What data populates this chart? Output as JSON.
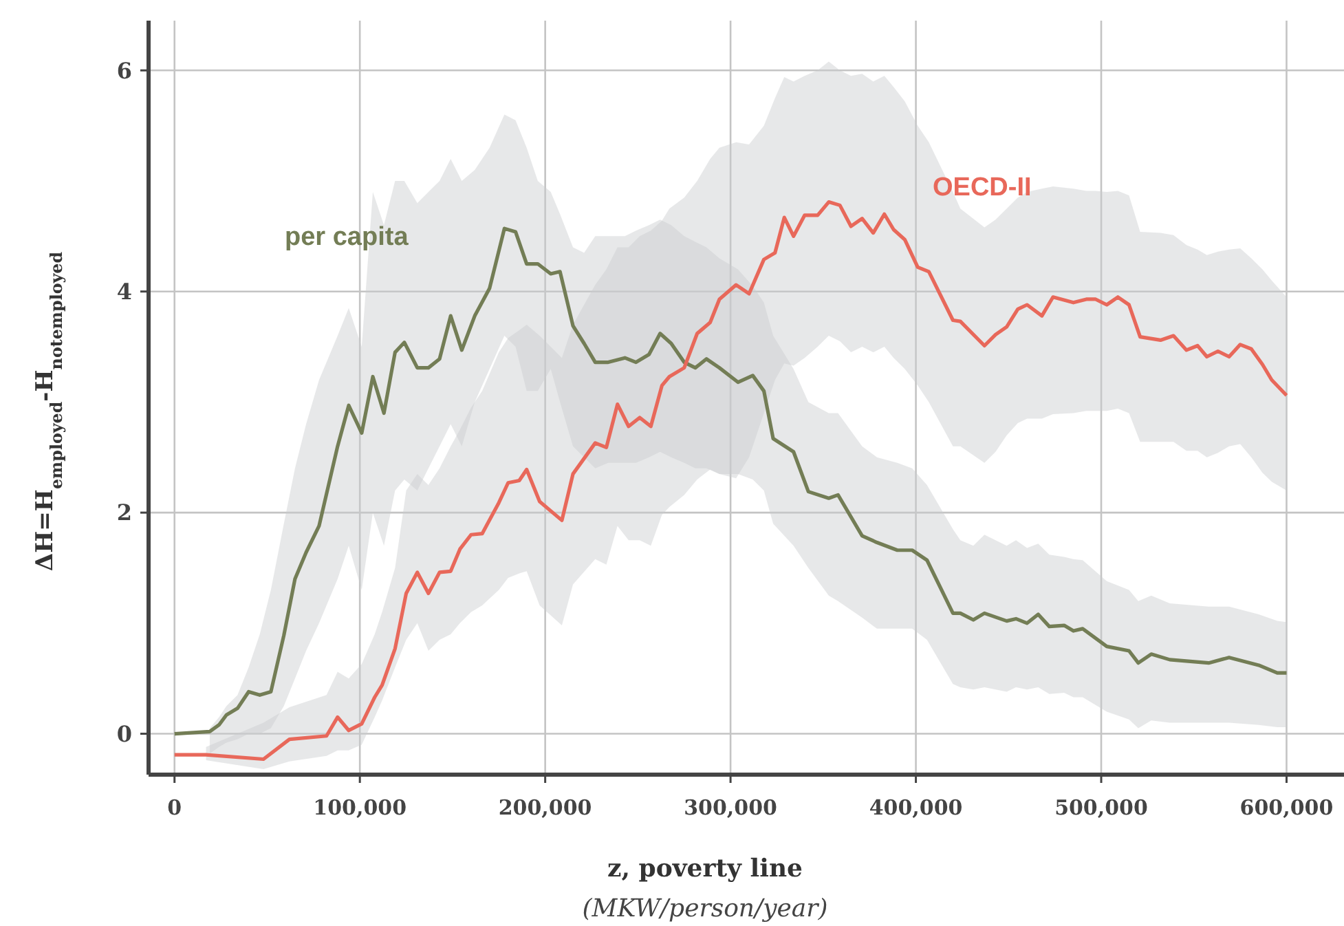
{
  "chart_data": {
    "type": "line",
    "xlabel": "z, poverty line",
    "ylabel": "ΔH=H$_{employed}$-H$_{notemployed}$",
    "annotations": [
      "(MKW/person/year)"
    ],
    "xlim": [
      -14000,
      631000
    ],
    "ylim": [
      -0.37,
      6.45
    ],
    "xticks": [
      0,
      {
        "value": 100000,
        "label": "100,000"
      },
      {
        "value": 200000,
        "label": "200,000"
      },
      {
        "value": 300000,
        "label": "300,000"
      },
      {
        "value": 400000,
        "label": "400,000"
      },
      {
        "value": 500000,
        "label": "500,000"
      },
      {
        "value": 600000,
        "label": "600,000"
      }
    ],
    "yticks": [
      0,
      2,
      4,
      6
    ],
    "grid": true,
    "marker": "none",
    "line_style": "solid",
    "series": [
      {
        "name": "per capita",
        "color": "#737d55",
        "x": [
          0,
          19000,
          24000,
          28000,
          34000,
          40000,
          46000,
          52000,
          59000,
          65000,
          71000,
          78000,
          88000,
          94000,
          101000,
          107000,
          113000,
          119000,
          124000,
          131000,
          137000,
          143000,
          149000,
          155000,
          162000,
          170000,
          178000,
          184000,
          190000,
          196000,
          203000,
          208000,
          215000,
          221000,
          227000,
          234000,
          243000,
          249000,
          256000,
          262000,
          268000,
          275000,
          281000,
          287000,
          294000,
          304000,
          312000,
          318000,
          323000,
          334000,
          342000,
          353000,
          358000,
          371000,
          379000,
          390000,
          398000,
          406000,
          420000,
          424000,
          431000,
          437000,
          449000,
          454000,
          460000,
          466000,
          472000,
          480000,
          485000,
          490000,
          503000,
          515000,
          520000,
          527000,
          537000,
          558000,
          569000,
          585000,
          595000,
          600000
        ],
        "values": [
          0,
          0.02,
          0.08,
          0.17,
          0.23,
          0.38,
          0.35,
          0.38,
          0.89,
          1.4,
          1.64,
          1.88,
          2.6,
          2.97,
          2.72,
          3.23,
          2.9,
          3.45,
          3.54,
          3.31,
          3.31,
          3.39,
          3.78,
          3.47,
          3.78,
          4.03,
          4.57,
          4.54,
          4.25,
          4.25,
          4.16,
          4.18,
          3.69,
          3.53,
          3.36,
          3.36,
          3.4,
          3.36,
          3.43,
          3.62,
          3.53,
          3.36,
          3.31,
          3.39,
          3.31,
          3.18,
          3.24,
          3.1,
          2.67,
          2.55,
          2.19,
          2.13,
          2.16,
          1.79,
          1.73,
          1.66,
          1.66,
          1.57,
          1.09,
          1.09,
          1.03,
          1.09,
          1.02,
          1.04,
          1.0,
          1.08,
          0.97,
          0.98,
          0.93,
          0.95,
          0.79,
          0.75,
          0.64,
          0.72,
          0.67,
          0.64,
          0.69,
          0.62,
          0.55,
          0.55
        ],
        "lower": [
          null,
          -0.18,
          -0.12,
          -0.08,
          -0.05,
          0.0,
          0.0,
          0.05,
          0.25,
          0.5,
          0.75,
          1.0,
          1.4,
          1.7,
          1.3,
          2.0,
          1.7,
          2.2,
          2.3,
          2.2,
          2.4,
          2.6,
          2.8,
          2.6,
          3.0,
          3.3,
          3.6,
          3.5,
          3.1,
          3.1,
          3.3,
          3.0,
          2.6,
          2.5,
          2.4,
          2.45,
          2.45,
          2.45,
          2.5,
          2.55,
          2.5,
          2.45,
          2.4,
          2.4,
          2.35,
          2.35,
          2.3,
          2.2,
          1.9,
          1.7,
          1.5,
          1.25,
          1.2,
          1.05,
          0.95,
          0.95,
          0.95,
          0.85,
          0.45,
          0.42,
          0.4,
          0.42,
          0.38,
          0.42,
          0.4,
          0.42,
          0.36,
          0.37,
          0.33,
          0.33,
          0.2,
          0.13,
          0.05,
          0.12,
          0.1,
          0.1,
          0.1,
          0.08,
          0.06,
          0.06
        ],
        "upper": [
          null,
          0.05,
          0.15,
          0.25,
          0.35,
          0.6,
          0.9,
          1.3,
          1.9,
          2.4,
          2.8,
          3.2,
          3.6,
          3.85,
          3.5,
          4.9,
          4.6,
          5.0,
          5.0,
          4.8,
          4.9,
          5.0,
          5.2,
          5.0,
          5.1,
          5.3,
          5.6,
          5.55,
          5.3,
          5.0,
          4.9,
          4.7,
          4.4,
          4.35,
          4.5,
          4.5,
          4.5,
          4.55,
          4.6,
          4.65,
          4.6,
          4.5,
          4.45,
          4.4,
          4.3,
          4.2,
          4.05,
          3.9,
          3.6,
          3.3,
          3.0,
          2.9,
          2.9,
          2.6,
          2.5,
          2.45,
          2.4,
          2.25,
          1.85,
          1.75,
          1.7,
          1.8,
          1.7,
          1.75,
          1.68,
          1.72,
          1.62,
          1.6,
          1.58,
          1.57,
          1.38,
          1.3,
          1.2,
          1.25,
          1.18,
          1.15,
          1.15,
          1.08,
          1.02,
          1.01
        ]
      },
      {
        "name": "OECD-II",
        "color": "#e8685a",
        "x": [
          0,
          17000,
          48000,
          62000,
          82000,
          88000,
          94000,
          101000,
          108000,
          112000,
          119000,
          125000,
          131000,
          137000,
          143000,
          149000,
          154000,
          160000,
          166000,
          175000,
          180000,
          186000,
          190000,
          197000,
          209000,
          215000,
          227000,
          233000,
          239000,
          245000,
          251000,
          257000,
          263000,
          267000,
          275000,
          282000,
          289000,
          294000,
          303000,
          310000,
          318000,
          324000,
          329000,
          334000,
          340000,
          347000,
          353000,
          359000,
          365000,
          371000,
          377000,
          383000,
          388000,
          394000,
          401000,
          407000,
          420000,
          424000,
          437000,
          443000,
          449000,
          455000,
          460000,
          468000,
          474000,
          485000,
          492000,
          497000,
          503000,
          509000,
          515000,
          521000,
          532000,
          539000,
          546000,
          552000,
          557000,
          563000,
          569000,
          575000,
          581000,
          587000,
          592000,
          600000
        ],
        "values": [
          -0.19,
          -0.19,
          -0.23,
          -0.05,
          -0.02,
          0.15,
          0.03,
          0.09,
          0.33,
          0.44,
          0.77,
          1.27,
          1.46,
          1.27,
          1.46,
          1.47,
          1.67,
          1.8,
          1.81,
          2.09,
          2.27,
          2.29,
          2.39,
          2.1,
          1.93,
          2.35,
          2.63,
          2.59,
          2.98,
          2.78,
          2.86,
          2.78,
          3.15,
          3.23,
          3.31,
          3.62,
          3.72,
          3.93,
          4.06,
          3.98,
          4.29,
          4.35,
          4.67,
          4.5,
          4.69,
          4.69,
          4.81,
          4.78,
          4.59,
          4.66,
          4.53,
          4.7,
          4.56,
          4.47,
          4.22,
          4.18,
          3.74,
          3.73,
          3.51,
          3.61,
          3.68,
          3.84,
          3.88,
          3.78,
          3.95,
          3.9,
          3.93,
          3.93,
          3.88,
          3.95,
          3.88,
          3.59,
          3.56,
          3.6,
          3.47,
          3.51,
          3.41,
          3.46,
          3.41,
          3.52,
          3.48,
          3.34,
          3.2,
          3.06
        ],
        "lower": [
          null,
          -0.24,
          -0.32,
          -0.25,
          -0.2,
          -0.15,
          -0.15,
          -0.1,
          0.15,
          0.3,
          0.6,
          0.85,
          1.0,
          0.75,
          0.85,
          0.9,
          1.0,
          1.1,
          1.16,
          1.3,
          1.41,
          1.45,
          1.47,
          1.16,
          0.98,
          1.35,
          1.58,
          1.53,
          1.88,
          1.75,
          1.75,
          1.7,
          1.98,
          2.05,
          2.16,
          2.3,
          2.39,
          2.35,
          2.31,
          2.5,
          2.9,
          3.2,
          3.35,
          3.33,
          3.4,
          3.5,
          3.6,
          3.55,
          3.45,
          3.5,
          3.45,
          3.5,
          3.4,
          3.3,
          3.15,
          3.0,
          2.6,
          2.6,
          2.45,
          2.55,
          2.7,
          2.81,
          2.85,
          2.85,
          2.89,
          2.9,
          2.92,
          2.92,
          2.92,
          2.94,
          2.9,
          2.64,
          2.64,
          2.64,
          2.56,
          2.56,
          2.5,
          2.54,
          2.6,
          2.62,
          2.5,
          2.36,
          2.28,
          2.2
        ],
        "upper": [
          null,
          -0.12,
          0.1,
          0.24,
          0.35,
          0.56,
          0.5,
          0.63,
          0.9,
          1.1,
          1.5,
          2.2,
          2.35,
          2.25,
          2.4,
          2.6,
          2.75,
          2.95,
          3.1,
          3.45,
          3.58,
          3.65,
          3.7,
          3.6,
          3.4,
          3.7,
          4.06,
          4.2,
          4.4,
          4.4,
          4.5,
          4.55,
          4.64,
          4.75,
          4.85,
          5.0,
          5.2,
          5.3,
          5.35,
          5.33,
          5.5,
          5.75,
          5.94,
          5.9,
          5.95,
          6.0,
          6.08,
          6.0,
          5.95,
          5.97,
          5.9,
          5.95,
          5.85,
          5.72,
          5.5,
          5.35,
          4.9,
          4.75,
          4.58,
          4.65,
          4.75,
          4.85,
          4.9,
          4.93,
          4.95,
          4.93,
          4.91,
          4.91,
          4.9,
          4.91,
          4.87,
          4.54,
          4.53,
          4.51,
          4.42,
          4.38,
          4.33,
          4.36,
          4.38,
          4.39,
          4.3,
          4.2,
          4.1,
          3.95
        ]
      }
    ]
  }
}
